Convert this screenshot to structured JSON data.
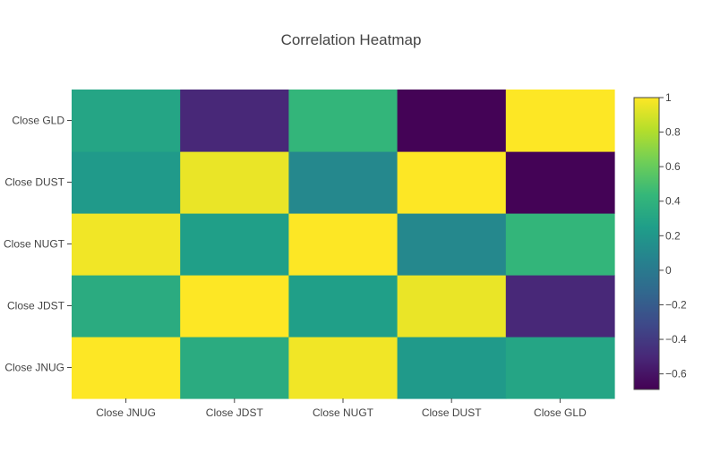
{
  "chart_data": {
    "type": "heatmap",
    "title": "Correlation Heatmap",
    "x_labels": [
      "Close JNUG",
      "Close JDST",
      "Close NUGT",
      "Close DUST",
      "Close GLD"
    ],
    "y_labels": [
      "Close JNUG",
      "Close JDST",
      "Close NUGT",
      "Close DUST",
      "Close GLD"
    ],
    "z": [
      [
        1.0,
        0.35,
        0.97,
        0.22,
        0.3
      ],
      [
        0.35,
        1.0,
        0.26,
        0.95,
        -0.5
      ],
      [
        0.97,
        0.26,
        1.0,
        0.1,
        0.42
      ],
      [
        0.22,
        0.95,
        0.1,
        1.0,
        -0.68
      ],
      [
        0.3,
        -0.5,
        0.42,
        -0.68,
        1.0
      ]
    ],
    "zmin": -0.69,
    "zmax": 1.0,
    "colorscale": "Viridis",
    "colorbar_ticks": [
      1,
      0.8,
      0.6,
      0.4,
      0.2,
      0,
      -0.2,
      -0.4,
      -0.6
    ],
    "colorbar_tick_labels": [
      "1",
      "0.8",
      "0.6",
      "0.4",
      "0.2",
      "0",
      "−0.2",
      "−0.4",
      "−0.6"
    ],
    "colors": {
      "viridis": [
        "#440154",
        "#482878",
        "#3e4989",
        "#31688e",
        "#26828e",
        "#1f9e89",
        "#35b779",
        "#6ece58",
        "#b5de2b",
        "#fde725"
      ],
      "text": "#444444",
      "tick_line": "#444444"
    }
  }
}
